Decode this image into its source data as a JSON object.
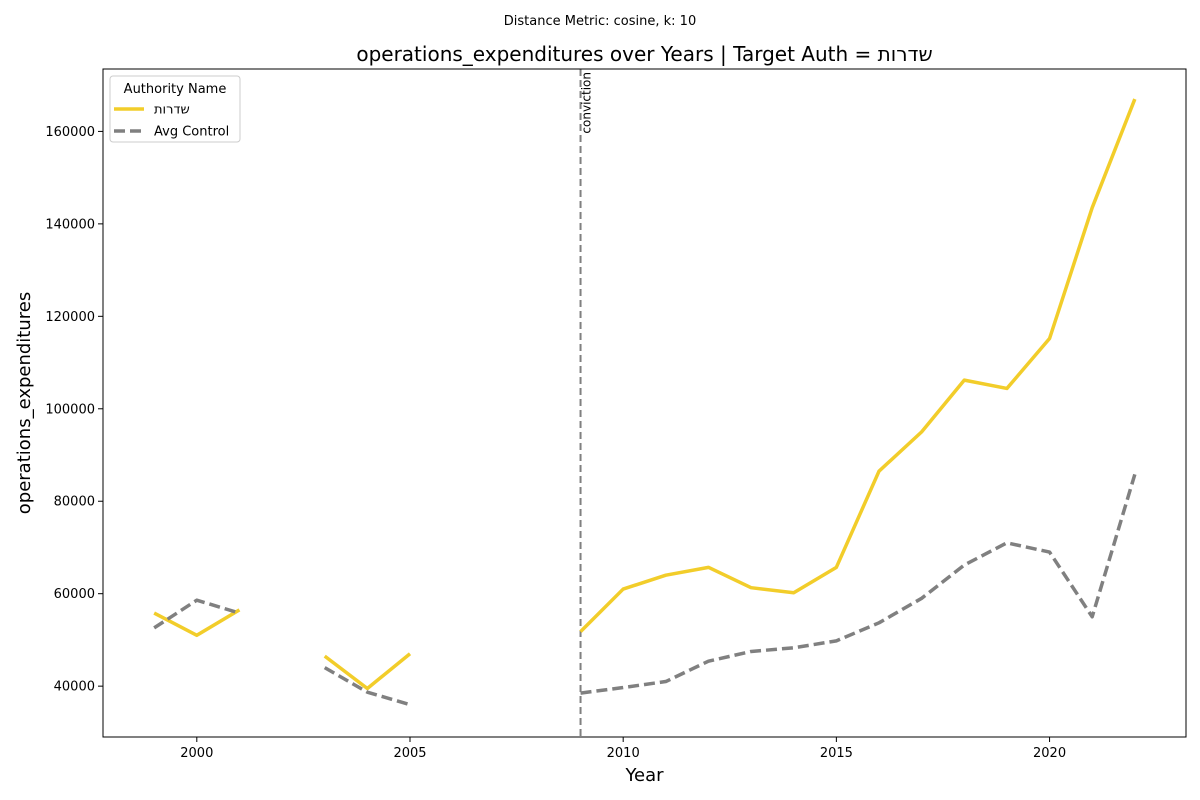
{
  "suptitle": "Distance Metric: cosine, k: 10",
  "chart_data": {
    "type": "line",
    "title": "operations_expenditures over Years | Target Auth = שדרות",
    "xlabel": "Year",
    "ylabel": "operations_expenditures",
    "xlim": [
      1997.8,
      2023.2
    ],
    "ylim": [
      29000,
      173500
    ],
    "xticks": [
      2000,
      2005,
      2010,
      2015,
      2020
    ],
    "yticks": [
      40000,
      60000,
      80000,
      100000,
      120000,
      140000,
      160000
    ],
    "grid": false,
    "legend": {
      "title": "Authority Name",
      "placement": "upper-left",
      "entries": [
        "שדרות",
        "Avg Control"
      ]
    },
    "vline": {
      "x": 2009,
      "label": "conviction"
    },
    "x": [
      1999,
      2000,
      2001,
      2002,
      2003,
      2004,
      2005,
      2006,
      2007,
      2008,
      2009,
      2010,
      2011,
      2012,
      2013,
      2014,
      2015,
      2016,
      2017,
      2018,
      2019,
      2020,
      2021,
      2022
    ],
    "series": [
      {
        "name": "שדרות",
        "color": "#f2cd2a",
        "style": "solid",
        "values": [
          55800,
          51000,
          56500,
          null,
          46500,
          39500,
          47000,
          null,
          null,
          null,
          51800,
          61000,
          64000,
          65700,
          61300,
          60200,
          65700,
          86500,
          95000,
          106200,
          104400,
          115200,
          143500,
          167000
        ]
      },
      {
        "name": "Avg Control",
        "color": "#808080",
        "style": "dashed",
        "values": [
          52600,
          58600,
          55800,
          null,
          44000,
          38700,
          36000,
          null,
          null,
          null,
          38500,
          39700,
          41000,
          45400,
          47500,
          48300,
          49800,
          53700,
          59000,
          66200,
          71000,
          69000,
          55000,
          85800
        ]
      }
    ]
  }
}
